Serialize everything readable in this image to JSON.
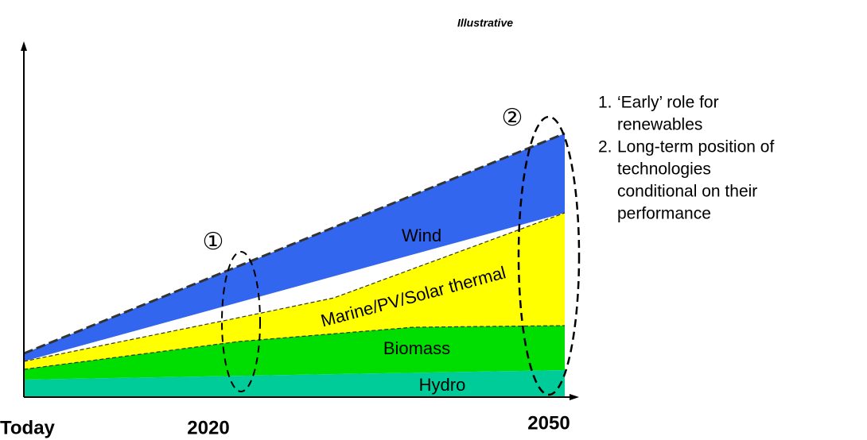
{
  "subtitle": "Illustrative",
  "areas": {
    "wind": "Wind",
    "marine": "Marine/PV/Solar thermal",
    "biomass": "Biomass",
    "hydro": "Hydro"
  },
  "markers": [
    "①",
    "②"
  ],
  "x_labels": [
    "Today",
    "2020",
    "2050"
  ],
  "notes": [
    {
      "number": "1.",
      "lines": [
        "‘Early’ role for",
        "renewables"
      ]
    },
    {
      "number": "2.",
      "lines": [
        "Long-term position of",
        "technologies",
        "conditional on their",
        "performance"
      ]
    }
  ]
}
